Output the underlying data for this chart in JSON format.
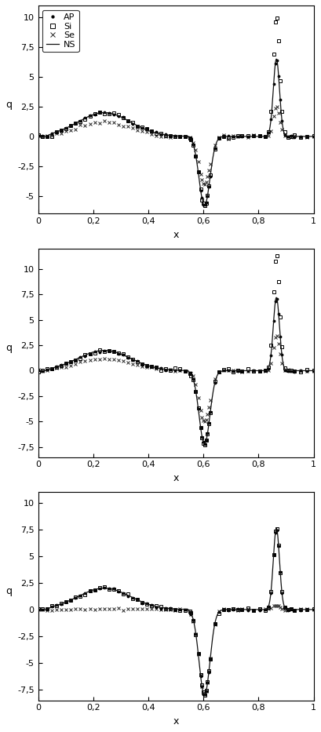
{
  "panels": [
    {
      "ylim": [
        -6.5,
        11
      ],
      "yticks": [
        -5,
        -2.5,
        0,
        2.5,
        5,
        7.5,
        10
      ],
      "ylabel": "q",
      "xlabel": "x",
      "legend": true,
      "hump_amp_AP": 2.0,
      "hump_amp_Si": 2.0,
      "hump_amp_Se": 1.2,
      "dip_AP": -5.8,
      "dip_Si": -5.8,
      "dip_Se": -4.0,
      "spike_AP": 6.5,
      "spike_Si": 10.2,
      "spike_Se": 2.5,
      "spike_ns": 6.5,
      "dip_ns": -5.8
    },
    {
      "ylim": [
        -8.5,
        12
      ],
      "yticks": [
        -7.5,
        -5,
        -2.5,
        0,
        2.5,
        5,
        7.5,
        10
      ],
      "ylabel": "q",
      "xlabel": "x",
      "legend": false,
      "hump_amp_AP": 2.0,
      "hump_amp_Si": 2.0,
      "hump_amp_Se": 1.2,
      "dip_AP": -7.2,
      "dip_Si": -7.2,
      "dip_Se": -5.0,
      "spike_AP": 7.2,
      "spike_Si": 11.5,
      "spike_Se": 3.5,
      "spike_ns": 7.2,
      "dip_ns": -7.2
    },
    {
      "ylim": [
        -8.5,
        11
      ],
      "yticks": [
        -7.5,
        -5,
        -2.5,
        0,
        2.5,
        5,
        7.5,
        10
      ],
      "ylabel": "q",
      "xlabel": "x",
      "legend": false,
      "hump_amp_AP": 2.0,
      "hump_amp_Si": 2.0,
      "hump_amp_Se": 0.05,
      "dip_AP": -8.0,
      "dip_Si": -8.0,
      "dip_Se": -8.0,
      "spike_AP": 7.6,
      "spike_Si": 7.6,
      "spike_Se": 0.5,
      "spike_ns": 7.6,
      "dip_ns": -8.0
    }
  ]
}
